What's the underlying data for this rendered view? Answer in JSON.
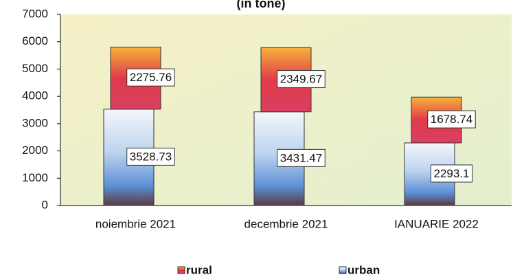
{
  "chart_data": {
    "type": "bar",
    "stacked": true,
    "title": "(in tone)",
    "categories": [
      "noiembrie 2021",
      "decembrie 2021",
      "IANUARIE 2022"
    ],
    "series": [
      {
        "name": "urban",
        "color": "#5b8fd6",
        "values": [
          3528.73,
          3431.47,
          2293.1
        ]
      },
      {
        "name": "rural",
        "color": "#e03a4a",
        "values": [
          2275.76,
          2349.67,
          1678.74
        ]
      }
    ],
    "ylim": [
      0,
      7000
    ],
    "yticks": [
      0,
      1000,
      2000,
      3000,
      4000,
      5000,
      6000,
      7000
    ]
  }
}
